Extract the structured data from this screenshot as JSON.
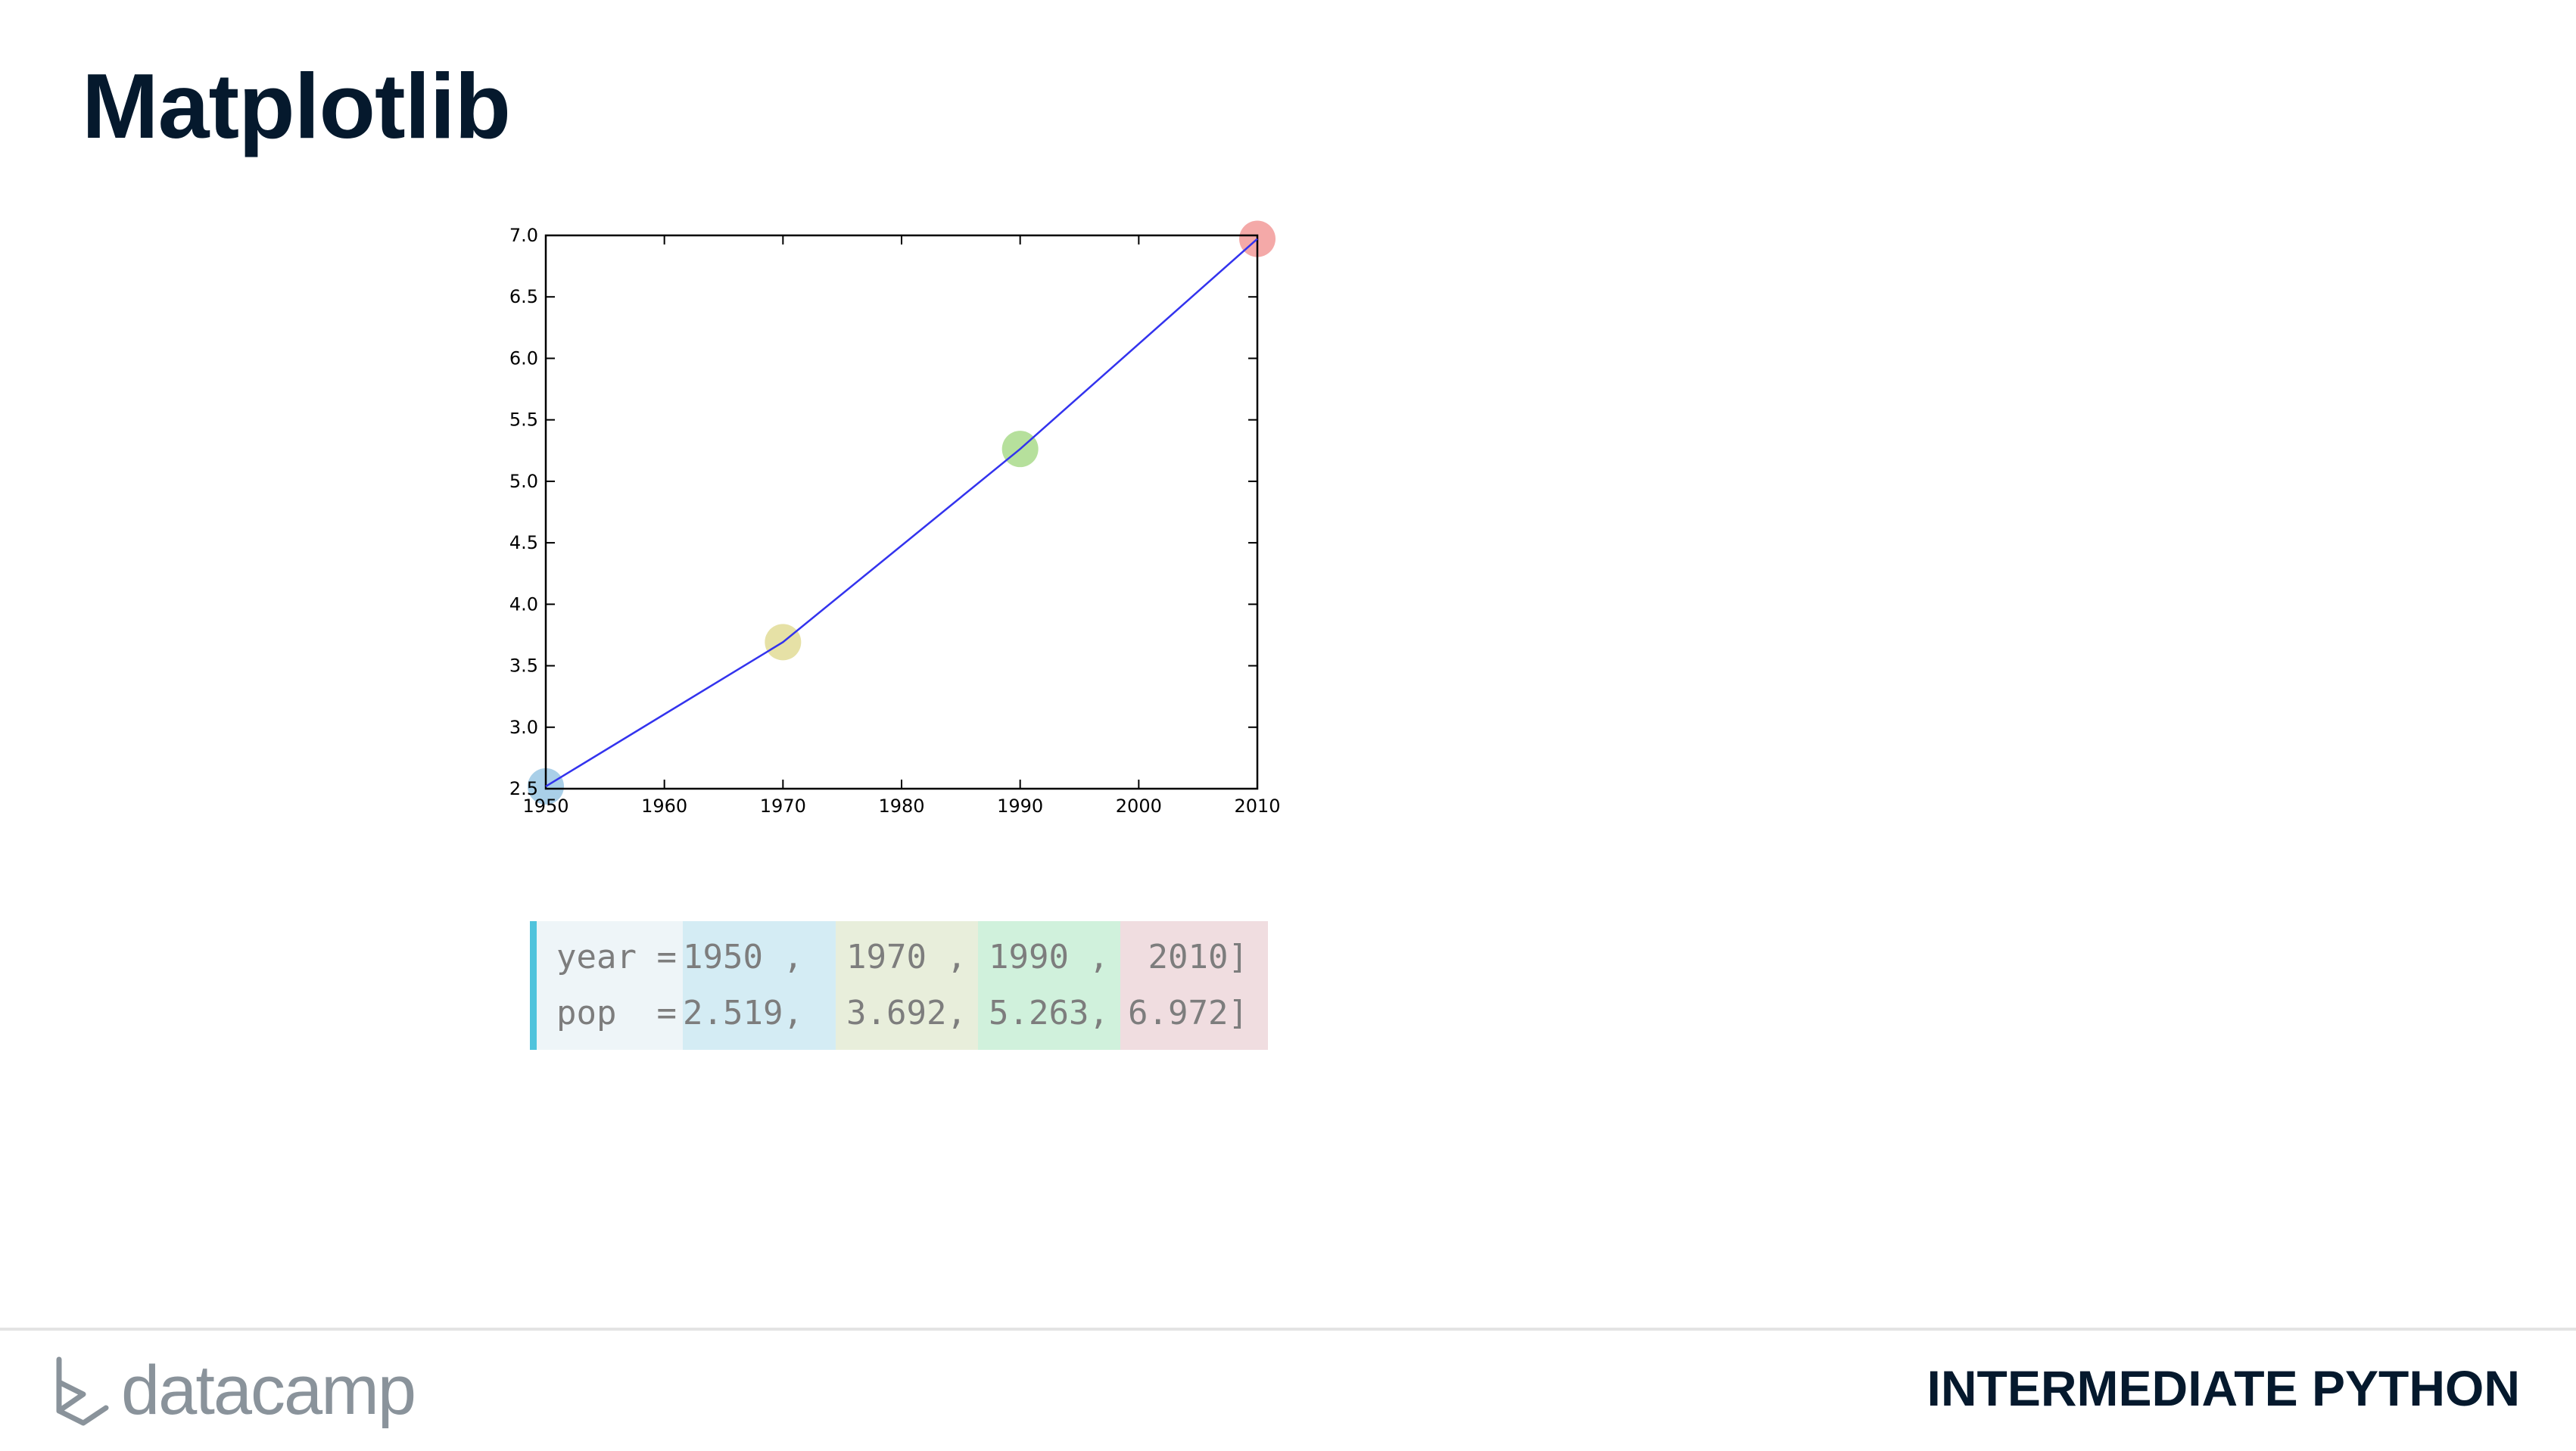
{
  "title": "Matplotlib",
  "chart_data": {
    "type": "line",
    "x": [
      1950,
      1970,
      1990,
      2010
    ],
    "y": [
      2.519,
      3.692,
      5.263,
      6.972
    ],
    "xlim": [
      1950,
      2010
    ],
    "ylim": [
      2.5,
      7.0
    ],
    "xticks": [
      1950,
      1960,
      1970,
      1980,
      1990,
      2000,
      2010
    ],
    "yticks": [
      2.5,
      3.0,
      3.5,
      4.0,
      4.5,
      5.0,
      5.5,
      6.0,
      6.5,
      7.0
    ],
    "line_color": "#3333ee",
    "highlight_points": [
      {
        "x": 1950,
        "y": 2.519,
        "color": "#a9cfe8"
      },
      {
        "x": 1970,
        "y": 3.692,
        "color": "#e6e1a6"
      },
      {
        "x": 1990,
        "y": 5.263,
        "color": "#b6e09c"
      },
      {
        "x": 2010,
        "y": 6.972,
        "color": "#f4a9a8"
      }
    ],
    "title": "",
    "xlabel": "",
    "ylabel": "",
    "grid": false
  },
  "code": {
    "labels": [
      "year = [",
      "pop  = ["
    ],
    "col1": [
      "1950 ,",
      "2.519,"
    ],
    "col2": [
      "1970 ,",
      "3.692,"
    ],
    "col3": [
      "1990 ,",
      "5.263,"
    ],
    "col4": [
      " 2010]",
      "6.972]"
    ]
  },
  "footer": {
    "brand": "datacamp",
    "course": "INTERMEDIATE PYTHON",
    "logo_icon": "datacamp-logo-icon"
  }
}
